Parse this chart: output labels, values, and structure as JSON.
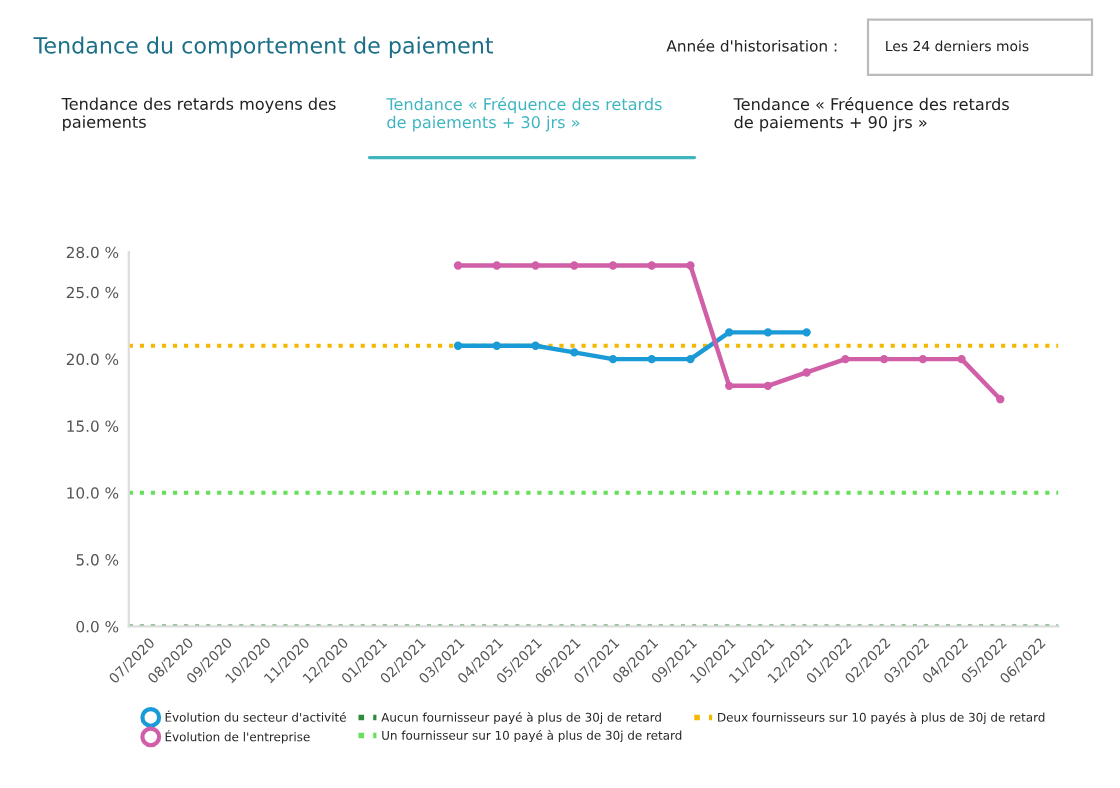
{
  "chart_data": {
    "type": "line",
    "title": "Tendance du comportement de paiement",
    "annotations": [
      "Année d'historisation :",
      "Les 24 derniers mois",
      "Tendance des retards moyens des paiements",
      "Tendance « Fréquence des retards de paiements + 30 jrs »",
      "Tendance « Fréquence des retards de paiements + 90 jrs »"
    ],
    "categories": [
      "07/2020",
      "08/2020",
      "09/2020",
      "10/2020",
      "11/2020",
      "12/2020",
      "01/2021",
      "02/2021",
      "03/2021",
      "04/2021",
      "05/2021",
      "06/2021",
      "07/2021",
      "08/2021",
      "09/2021",
      "10/2021",
      "11/2021",
      "12/2021",
      "01/2022",
      "02/2022",
      "03/2022",
      "04/2022",
      "05/2022",
      "06/2022"
    ],
    "series": [
      {
        "name": "Évolution du secteur d'activité",
        "color": "#1a9ad6",
        "values": [
          null,
          null,
          null,
          null,
          null,
          null,
          null,
          null,
          21,
          21,
          21,
          20.5,
          20,
          20,
          20,
          22,
          22,
          22,
          null,
          null,
          null,
          null,
          null,
          null
        ]
      },
      {
        "name": "Évolution de l'entreprise",
        "color": "#d05fa8",
        "values": [
          null,
          null,
          null,
          null,
          null,
          null,
          null,
          null,
          27,
          27,
          27,
          27,
          27,
          27,
          27,
          18,
          18,
          19,
          20,
          20,
          20,
          20,
          17,
          null
        ]
      }
    ],
    "ref_lines": [
      {
        "axis": "y",
        "value": 0,
        "label": "Aucun fournisseur payé à plus de 30j de retard",
        "color": "#2e8b3e",
        "line_style": "dotted"
      },
      {
        "axis": "y",
        "value": 10,
        "label": "Un fournisseur sur 10 payé à plus de 30j de retard",
        "color": "#66e05a",
        "line_style": "dotted"
      },
      {
        "axis": "y",
        "value": 21,
        "label": "Deux fournisseurs sur 10 payés à plus de 30j de retard",
        "color": "#f5b800",
        "line_style": "dotted"
      }
    ],
    "ylim": [
      0,
      28
    ],
    "yticks": [
      {
        "value": 0,
        "label": "0.0 %"
      },
      {
        "value": 5,
        "label": "5.0 %"
      },
      {
        "value": 10,
        "label": "10.0 %"
      },
      {
        "value": 15,
        "label": "15.0 %"
      },
      {
        "value": 20,
        "label": "20.0 %"
      },
      {
        "value": 25,
        "label": "25.0 %"
      },
      {
        "value": 28,
        "label": "28.0 %"
      }
    ],
    "grid": false,
    "legend": "bottom",
    "marker": "circle",
    "line_style": "solid"
  }
}
